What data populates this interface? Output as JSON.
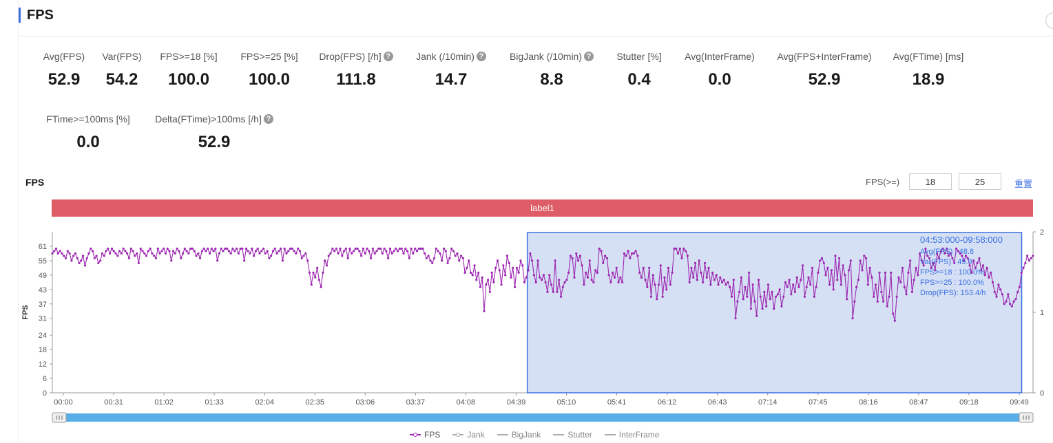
{
  "header": {
    "title": "FPS"
  },
  "metrics": [
    {
      "label": "Avg(FPS)",
      "value": "52.9",
      "help": false
    },
    {
      "label": "Var(FPS)",
      "value": "54.2",
      "help": false
    },
    {
      "label": "FPS>=18 [%]",
      "value": "100.0",
      "help": false
    },
    {
      "label": "FPS>=25 [%]",
      "value": "100.0",
      "help": false
    },
    {
      "label": "Drop(FPS) [/h]",
      "value": "111.8",
      "help": true
    },
    {
      "label": "Jank (/10min)",
      "value": "14.7",
      "help": true
    },
    {
      "label": "BigJank (/10min)",
      "value": "8.8",
      "help": true
    },
    {
      "label": "Stutter [%]",
      "value": "0.4",
      "help": false
    },
    {
      "label": "Avg(InterFrame)",
      "value": "0.0",
      "help": false
    },
    {
      "label": "Avg(FPS+InterFrame)",
      "value": "52.9",
      "help": false
    },
    {
      "label": "Avg(FTime) [ms]",
      "value": "18.9",
      "help": false
    },
    {
      "label": "FTime>=100ms [%]",
      "value": "0.0",
      "help": false
    },
    {
      "label": "Delta(FTime)>100ms [/h]",
      "value": "52.9",
      "help": true
    }
  ],
  "help_glyph": "?",
  "chart_section": {
    "title": "FPS",
    "threshold_label": "FPS(>=)",
    "threshold_1": "18",
    "threshold_2": "25",
    "reset_label": "重置",
    "label_bar": "label1"
  },
  "selection_tooltip": {
    "range": "04:53:000-09:58:000",
    "lines": [
      "Avg(FPS)  : 48.8",
      "Var(FPS)  : 49.9",
      "FPS>=18 : 100.0%",
      "FPS>=25 : 100.0%",
      "Drop(FPS): 153.4/h"
    ]
  },
  "legend": [
    "FPS",
    "Jank",
    "BigJank",
    "Stutter",
    "InterFrame"
  ],
  "colors": {
    "accent": "#3a6fe0",
    "series": "#9c27b0",
    "label_bar": "#dd5c66",
    "selection_fill": "#d5e0f5",
    "selection_stroke": "#3a6fe0",
    "slider": "#5aaee8"
  },
  "chart_data": {
    "type": "line",
    "ylabel": "FPS",
    "y_ticks": [
      0,
      6,
      12,
      18,
      24,
      31,
      37,
      43,
      49,
      55,
      61
    ],
    "y_right_ticks": [
      0,
      1,
      2
    ],
    "x_ticks": [
      "00:00",
      "00:31",
      "01:02",
      "01:33",
      "02:04",
      "02:35",
      "03:06",
      "03:37",
      "04:08",
      "04:39",
      "05:10",
      "05:41",
      "06:12",
      "06:43",
      "07:14",
      "07:45",
      "08:16",
      "08:47",
      "09:18",
      "09:49"
    ],
    "x_range_seconds": [
      0,
      605
    ],
    "ylim": [
      0,
      67
    ],
    "selection_seconds": [
      293,
      598
    ],
    "series": [
      {
        "name": "FPS",
        "values": [
          58,
          59,
          60,
          58,
          59,
          58,
          57,
          56,
          59,
          58,
          55,
          57,
          58,
          56,
          54,
          55,
          57,
          53,
          56,
          58,
          60,
          59,
          56,
          57,
          54,
          55,
          58,
          57,
          59,
          60,
          58,
          60,
          59,
          58,
          57,
          59,
          58,
          60,
          59,
          58,
          56,
          60,
          59,
          57,
          58,
          54,
          60,
          59,
          58,
          57,
          59,
          60,
          58,
          57,
          56,
          60,
          58,
          59,
          60,
          58,
          60,
          59,
          55,
          59,
          58,
          60,
          59,
          56,
          58,
          60,
          59,
          58,
          60,
          60,
          59,
          57,
          58,
          56,
          59,
          60,
          59,
          60,
          58,
          60,
          59,
          60,
          55,
          58,
          60,
          59,
          60,
          60,
          59,
          58,
          60,
          59,
          60,
          58,
          60,
          60,
          55,
          60,
          59,
          58,
          60,
          57,
          59,
          60,
          58,
          59,
          60,
          58,
          59,
          56,
          57,
          59,
          60,
          58,
          59,
          60,
          55,
          60,
          58,
          59,
          60,
          60,
          59,
          58,
          60,
          59,
          56,
          57,
          58,
          55,
          50,
          45,
          50,
          48,
          52,
          47,
          44,
          50,
          55,
          53,
          57,
          58,
          60,
          59,
          60,
          58,
          60,
          57,
          59,
          60,
          56,
          60,
          58,
          59,
          60,
          60,
          59,
          57,
          60,
          58,
          60,
          59,
          56,
          60,
          58,
          59,
          60,
          60,
          58,
          60,
          59,
          56,
          60,
          58,
          59,
          60,
          59,
          60,
          60,
          58,
          60,
          59,
          56,
          60,
          58,
          60,
          59,
          60,
          60,
          60,
          58,
          56,
          57,
          55,
          54,
          56,
          60,
          59,
          58,
          55,
          60,
          59,
          54,
          56,
          60,
          59,
          57,
          58,
          55,
          57,
          56,
          50,
          52,
          55,
          50,
          49,
          53,
          47,
          50,
          44,
          48,
          34,
          45,
          47,
          42,
          50,
          46,
          52,
          55,
          51,
          45,
          53,
          49,
          57,
          54,
          48,
          52,
          44,
          52,
          50,
          55,
          53,
          46,
          48,
          51,
          58,
          55,
          49,
          46,
          55,
          48,
          47,
          49,
          46,
          42,
          49,
          45,
          42,
          55,
          42,
          47,
          40,
          44,
          46,
          47,
          50,
          57,
          56,
          48,
          58,
          55,
          57,
          53,
          45,
          50,
          48,
          55,
          47,
          46,
          51,
          50,
          60,
          59,
          54,
          57,
          56,
          49,
          46,
          50,
          48,
          52,
          46,
          48,
          46,
          58,
          57,
          59,
          56,
          58,
          58,
          59,
          57,
          50,
          48,
          52,
          47,
          44,
          52,
          40,
          49,
          45,
          39,
          45,
          53,
          40,
          48,
          43,
          52,
          45,
          50,
          60,
          60,
          58,
          60,
          56,
          60,
          59,
          57,
          46,
          52,
          48,
          54,
          47,
          55,
          50,
          46,
          54,
          48,
          52,
          45,
          50,
          47,
          49,
          45,
          48,
          46,
          47,
          45,
          46,
          44,
          40,
          47,
          31,
          38,
          42,
          48,
          39,
          44,
          40,
          50,
          35,
          45,
          38,
          32,
          47,
          40,
          35,
          42,
          36,
          45,
          39,
          42,
          35,
          40,
          41,
          43,
          36,
          40,
          46,
          44,
          47,
          41,
          45,
          42,
          48,
          44,
          47,
          53,
          40,
          44,
          48,
          45,
          52,
          40,
          44,
          50,
          55,
          56,
          54,
          49,
          52,
          45,
          51,
          43,
          57,
          47,
          56,
          45,
          53,
          49,
          39,
          51,
          55,
          31,
          38,
          44,
          47,
          55,
          51,
          57,
          56,
          45,
          52,
          48,
          40,
          45,
          38,
          50,
          42,
          38,
          50,
          36,
          40,
          50,
          33,
          30,
          40,
          48,
          46,
          52,
          44,
          41,
          50,
          55,
          42,
          47,
          52,
          49,
          58,
          55,
          53,
          60,
          57,
          56,
          52,
          54,
          51,
          58,
          56,
          59,
          60,
          58,
          60,
          57,
          58,
          56,
          54,
          60,
          59,
          58,
          57,
          55,
          57,
          56,
          53,
          50,
          55,
          52,
          54,
          56,
          51,
          53,
          49,
          52,
          48,
          50,
          46,
          42,
          40,
          45,
          43,
          41,
          37,
          38,
          41,
          37,
          36,
          38,
          39,
          42,
          44,
          50,
          52,
          54,
          57,
          55,
          56,
          57
        ]
      }
    ]
  }
}
